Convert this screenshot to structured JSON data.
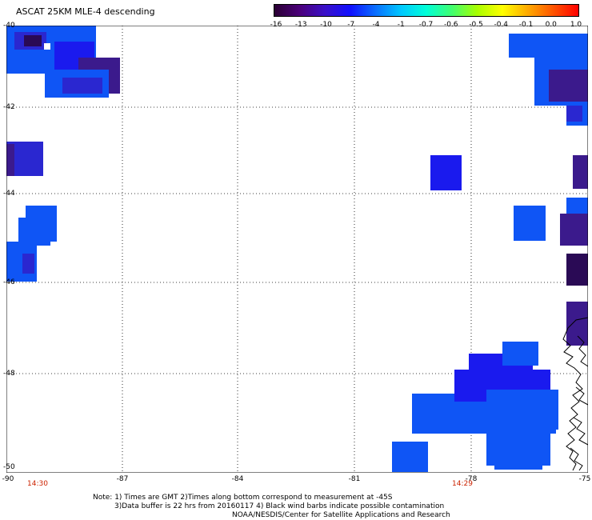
{
  "title": "ASCAT 25KM MLE-4 descending",
  "colorbar": {
    "labels": [
      "-16",
      "-13",
      "-10",
      "-7",
      "-4",
      "-1",
      "-0.7",
      "-0.6",
      "-0.5",
      "-0.4",
      "-0.1",
      "0.0",
      "1.0"
    ],
    "colors": [
      "#2a0033",
      "#4b007a",
      "#3a10c8",
      "#1010ff",
      "#0a70ff",
      "#00c8ff",
      "#00ffd8",
      "#40ff70",
      "#a8ff00",
      "#ffff00",
      "#ffaa00",
      "#ff5500",
      "#ff0000"
    ]
  },
  "axes": {
    "y_labels": [
      "-40",
      "-42",
      "-44",
      "-46",
      "-48",
      "-50"
    ],
    "x_labels": [
      "-90",
      "-87",
      "-84",
      "-81",
      "-78",
      "-75"
    ]
  },
  "times": [
    "14:30",
    "14:29"
  ],
  "notes": {
    "line1": "Note: 1) Times are GMT 2)Times along bottom correspond to measurement at -45S",
    "line2": "3)Data buffer is 22 hrs from 20160117 4) Black wind barbs indicate possible contamination",
    "line3": "NOAA/NESDIS/Center for Satellite Applications and Research"
  },
  "palette": {
    "blue": "#0f55f5",
    "darkblue": "#2a27d0",
    "purple": "#3b1a8c",
    "darkpurple": "#2a0a55",
    "royal": "#1a1aee"
  }
}
